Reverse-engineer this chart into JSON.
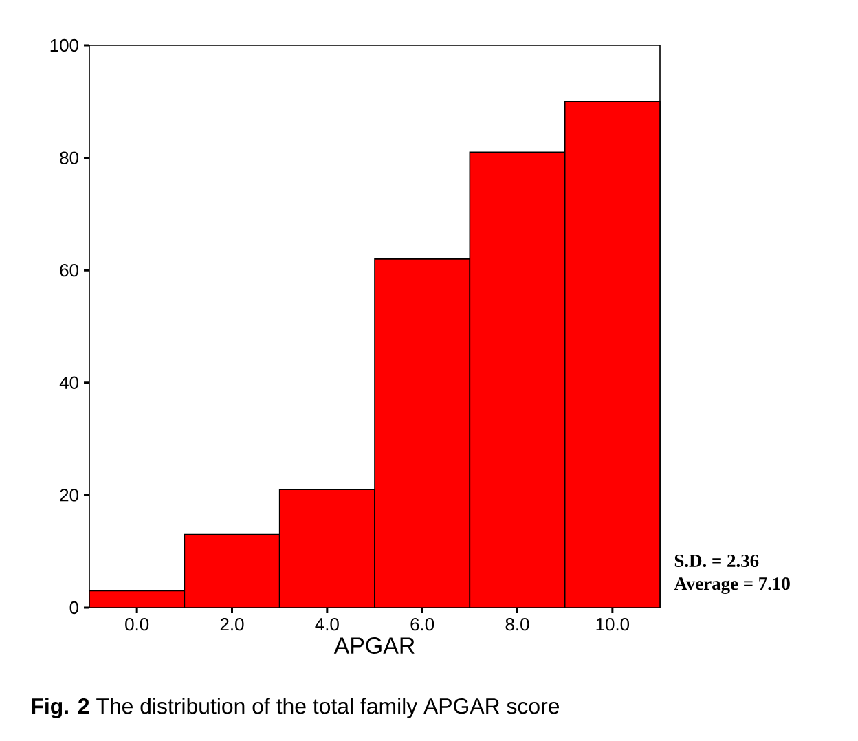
{
  "chart_data": {
    "type": "histogram",
    "xlabel": "APGAR",
    "bins": [
      -1,
      1,
      3,
      5,
      7,
      9,
      11
    ],
    "values": [
      3,
      13,
      21,
      62,
      81,
      90
    ],
    "color": "#ff0000",
    "xlim": [
      -1,
      11
    ],
    "ylim": [
      0,
      100
    ],
    "xticks": [
      {
        "value": 0,
        "label": "0.0"
      },
      {
        "value": 2,
        "label": "2.0"
      },
      {
        "value": 4,
        "label": "4.0"
      },
      {
        "value": 6,
        "label": "6.0"
      },
      {
        "value": 8,
        "label": "8.0"
      },
      {
        "value": 10,
        "label": "10.0"
      }
    ],
    "yticks": [
      0,
      20,
      40,
      60,
      80,
      100
    ],
    "annotations": [
      "S.D. = 2.36",
      "Average = 7.10",
      "**Fig. 2**  The distribution of the total family APGAR score"
    ]
  }
}
